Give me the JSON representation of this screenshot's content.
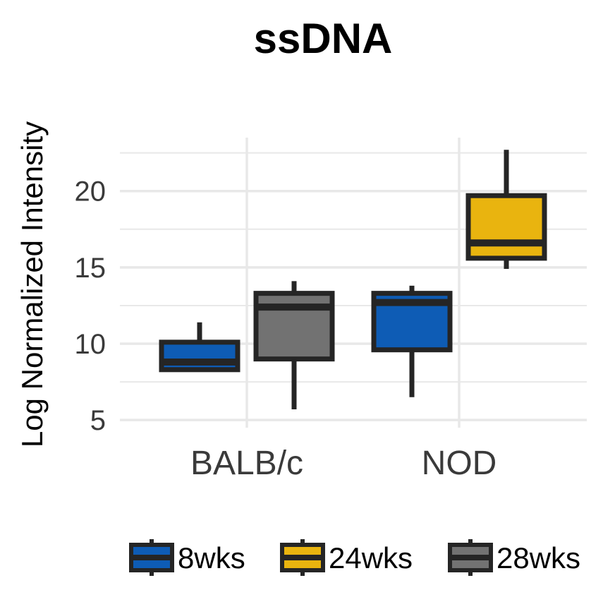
{
  "chart_data": {
    "type": "box",
    "title": "ssDNA",
    "ylabel": "Log Normalized Intensity",
    "xlabel": "",
    "ylim": [
      4.5,
      23.5
    ],
    "yticks": [
      5,
      10,
      15,
      20
    ],
    "grid": true,
    "legend_position": "bottom",
    "categories": [
      "BALB/c",
      "NOD"
    ],
    "series": [
      {
        "name": "8wks",
        "color": "#0e5cb5",
        "boxes": [
          {
            "category": "BALB/c",
            "whisker_low": 8.3,
            "q1": 8.3,
            "median": 8.8,
            "q3": 10.1,
            "whisker_high": 11.4
          },
          {
            "category": "NOD",
            "whisker_low": 6.5,
            "q1": 9.6,
            "median": 12.7,
            "q3": 13.3,
            "whisker_high": 13.8
          }
        ]
      },
      {
        "name": "24wks",
        "color": "#e9b40f",
        "boxes": [
          {
            "category": "NOD",
            "whisker_low": 14.9,
            "q1": 15.6,
            "median": 16.6,
            "q3": 19.7,
            "whisker_high": 22.7
          }
        ]
      },
      {
        "name": "28wks",
        "color": "#727272",
        "boxes": [
          {
            "category": "BALB/c",
            "whisker_low": 5.7,
            "q1": 9.0,
            "median": 12.4,
            "q3": 13.3,
            "whisker_high": 14.1
          }
        ]
      }
    ]
  },
  "colors": {
    "outline": "#252525",
    "grid": "#e8e8e8",
    "background": "#ffffff"
  }
}
